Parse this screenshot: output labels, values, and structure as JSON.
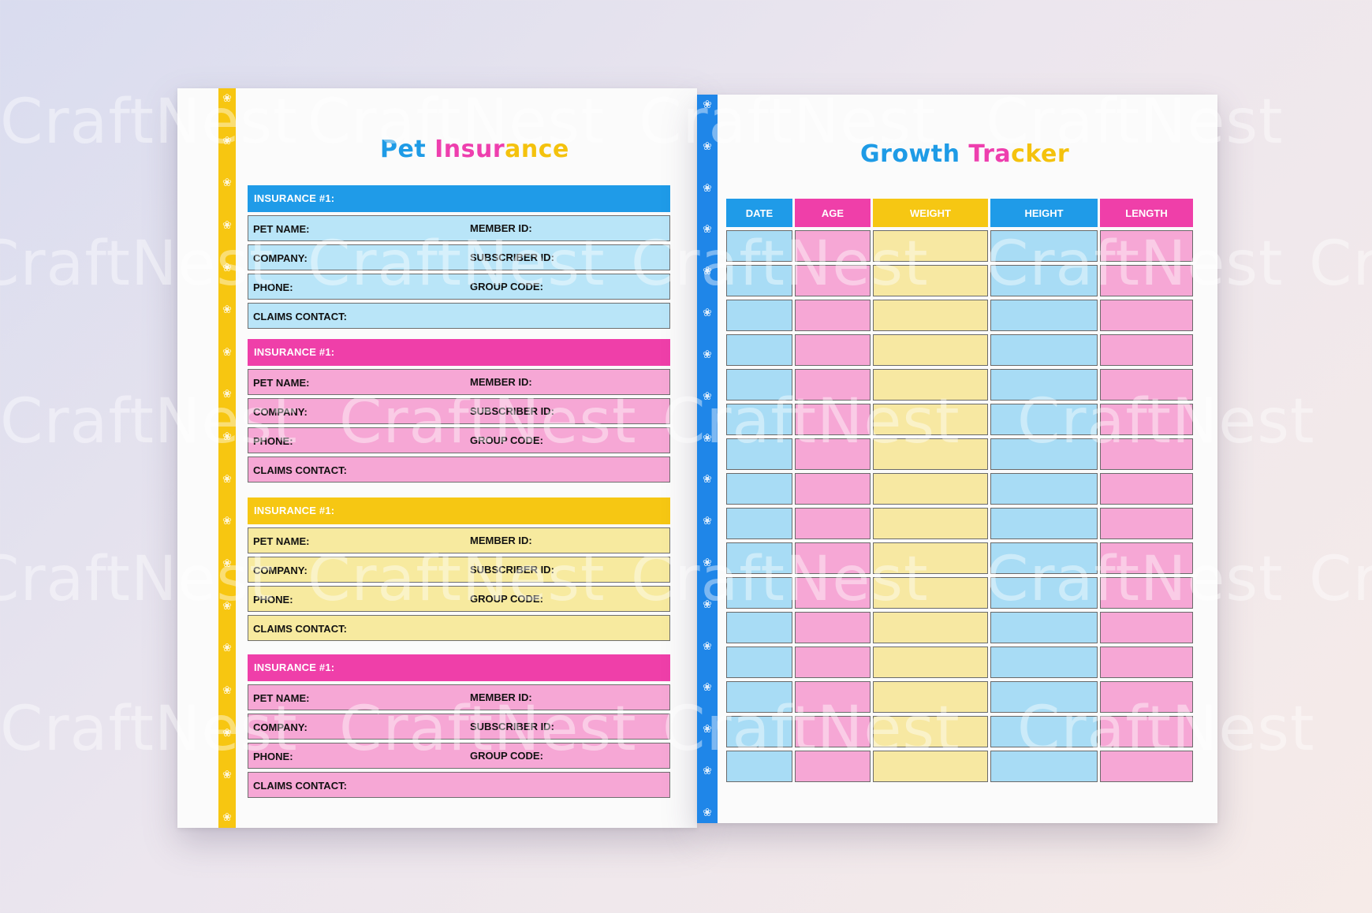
{
  "watermark": "CraftNest",
  "left_page": {
    "title_parts": [
      "Pet",
      " Insur",
      "ance"
    ],
    "sections": [
      {
        "color": "blue",
        "header": "INSURANCE #1:",
        "rows": [
          {
            "left": "PET NAME:",
            "right": "MEMBER ID:"
          },
          {
            "left": "COMPANY:",
            "right": "SUBSCRIBER ID:"
          },
          {
            "left": "PHONE:",
            "right": "GROUP CODE:"
          },
          {
            "left": "CLAIMS CONTACT:",
            "right": ""
          }
        ]
      },
      {
        "color": "pink",
        "header": "INSURANCE #1:",
        "rows": [
          {
            "left": "PET NAME:",
            "right": "MEMBER ID:"
          },
          {
            "left": "COMPANY:",
            "right": "SUBSCRIBER ID:"
          },
          {
            "left": "PHONE:",
            "right": "GROUP CODE:"
          },
          {
            "left": "CLAIMS CONTACT:",
            "right": ""
          }
        ]
      },
      {
        "color": "yellow",
        "header": "INSURANCE #1:",
        "rows": [
          {
            "left": "PET NAME:",
            "right": "MEMBER ID:"
          },
          {
            "left": "COMPANY:",
            "right": "SUBSCRIBER ID:"
          },
          {
            "left": "PHONE:",
            "right": "GROUP CODE:"
          },
          {
            "left": "CLAIMS CONTACT:",
            "right": ""
          }
        ]
      },
      {
        "color": "pink",
        "header": "INSURANCE #1:",
        "rows": [
          {
            "left": "PET NAME:",
            "right": "MEMBER ID:"
          },
          {
            "left": "COMPANY:",
            "right": "SUBSCRIBER ID:"
          },
          {
            "left": "PHONE:",
            "right": "GROUP CODE:"
          },
          {
            "left": "CLAIMS CONTACT:",
            "right": ""
          }
        ]
      }
    ]
  },
  "right_page": {
    "title_parts": [
      "Growth",
      " Tra",
      "cker"
    ],
    "columns": [
      "DATE",
      "AGE",
      "WEIGHT",
      "HEIGHT",
      "LENGTH"
    ],
    "empty_rows": 16
  },
  "colors": {
    "blue": "#1f9be8",
    "pink": "#ef3fa9",
    "yellow": "#f6c713"
  }
}
